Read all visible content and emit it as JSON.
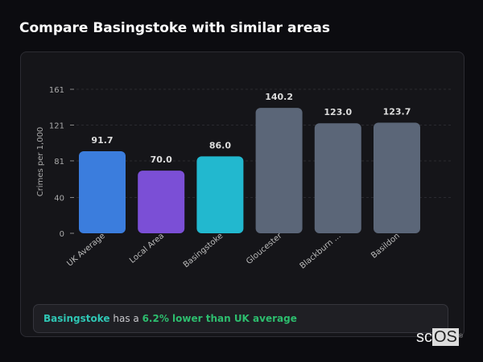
{
  "header": {
    "title": "Compare Basingstoke with similar areas"
  },
  "chart_data": {
    "type": "bar",
    "categories": [
      "UK Average",
      "Local Area",
      "Basingstoke",
      "Gloucester",
      "Blackburn ...",
      "Basildon"
    ],
    "values": [
      91.7,
      70.0,
      86.0,
      140.2,
      123.0,
      123.7
    ],
    "data_labels": [
      "91.7",
      "70.0",
      "86.0",
      "140.2",
      "123.0",
      "123.7"
    ],
    "colors": [
      "#3b7ddd",
      "#7b4fd6",
      "#22b8cf",
      "#5b6678",
      "#5b6678",
      "#5b6678"
    ],
    "ylabel": "Crimes per 1,000",
    "xlabel": "",
    "yticks": [
      0,
      40,
      81,
      121,
      161
    ],
    "ylim": [
      0,
      161
    ],
    "grid": true
  },
  "summary": {
    "city": "Basingstoke",
    "middle": " has a ",
    "delta": "6.2% lower than UK average"
  },
  "watermark": {
    "a": "sc",
    "b": "OS",
    "mark": "®"
  }
}
